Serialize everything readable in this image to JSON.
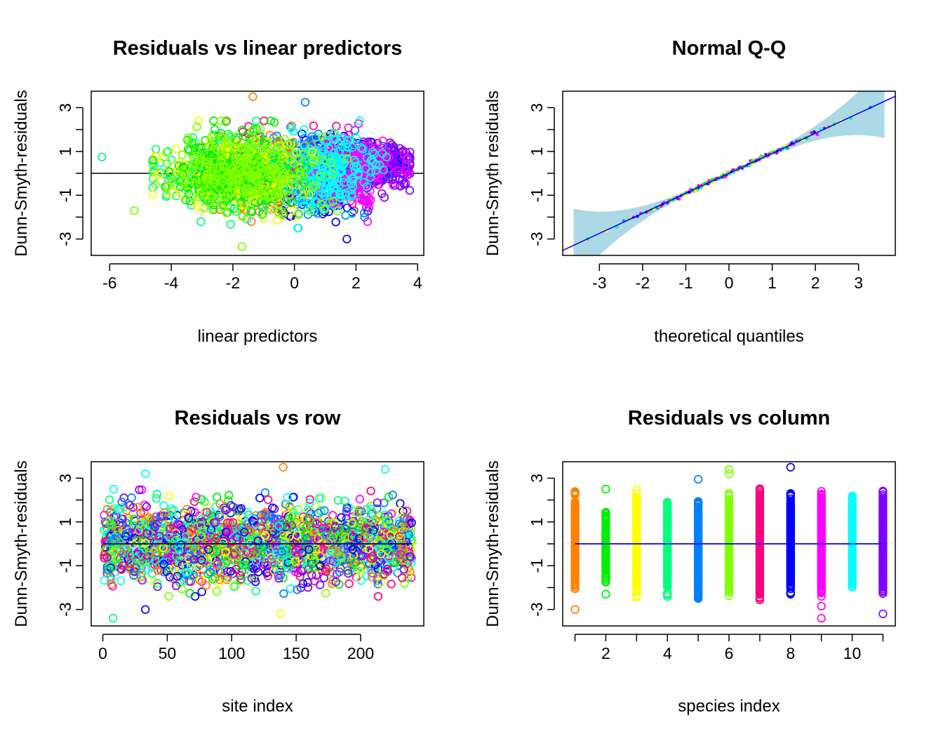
{
  "chart_data": [
    {
      "id": "p1",
      "type": "scatter",
      "title": "Residuals vs linear predictors",
      "xlabel": "linear predictors",
      "ylabel": "Dunn-Smyth-residuals",
      "xlim": [
        -6.6,
        4.2
      ],
      "ylim": [
        -3.75,
        3.75
      ],
      "xticks": [
        -6,
        -4,
        -2,
        0,
        2,
        4
      ],
      "yticks": [
        -3,
        -2,
        -1,
        0,
        1,
        2,
        3
      ],
      "ytick_labels": [
        "-3",
        "-1",
        "1",
        "3"
      ],
      "reference_line": {
        "x": [
          -6.6,
          4.2
        ],
        "y": [
          0,
          0
        ],
        "color": "#000000"
      },
      "marker": "open-circle",
      "points_shown": "approx. 2640 residuals colored by species",
      "notable_points": [
        {
          "x": -6.25,
          "y": 0.75
        },
        {
          "x": -5.2,
          "y": -1.7
        },
        {
          "x": -1.7,
          "y": -3.35
        },
        {
          "x": -1.35,
          "y": 3.5
        },
        {
          "x": 0.35,
          "y": 3.25
        },
        {
          "x": 1.7,
          "y": -3.0
        }
      ]
    },
    {
      "id": "p2",
      "type": "scatter",
      "title": "Normal Q-Q",
      "xlabel": "theoretical quantiles",
      "ylabel": "Dunn-Smyth residuals",
      "xlim": [
        -3.85,
        3.85
      ],
      "ylim": [
        -3.75,
        3.75
      ],
      "xticks": [
        -3,
        -2,
        -1,
        0,
        1,
        2,
        3
      ],
      "yticks": [
        -3,
        -2,
        -1,
        0,
        1,
        2,
        3
      ],
      "ytick_labels": [
        "-3",
        "-1",
        "1",
        "3"
      ],
      "reference_line": {
        "x": [
          -3.85,
          3.85
        ],
        "y": [
          -3.52,
          3.52
        ],
        "color": "#0000ff"
      },
      "envelope_color": "#add8e6",
      "marker": "small-filled-circle"
    },
    {
      "id": "p3",
      "type": "scatter",
      "title": "Residuals vs row",
      "xlabel": "site index",
      "ylabel": "Dunn-Smyth-residuals",
      "xlim": [
        -9,
        249
      ],
      "ylim": [
        -3.75,
        3.75
      ],
      "xticks": [
        0,
        50,
        100,
        150,
        200
      ],
      "yticks": [
        -3,
        -2,
        -1,
        0,
        1,
        2,
        3
      ],
      "ytick_labels": [
        "-3",
        "-1",
        "1",
        "3"
      ],
      "reference_line": {
        "x": [
          1,
          240
        ],
        "y": [
          0,
          0
        ],
        "color": "#000080"
      },
      "marker": "open-circle",
      "notable_points": [
        {
          "x": 33,
          "y": 3.2
        },
        {
          "x": 140,
          "y": 3.5
        },
        {
          "x": 219,
          "y": 3.4
        },
        {
          "x": 8,
          "y": -3.4
        },
        {
          "x": 33,
          "y": -3.0
        },
        {
          "x": 138,
          "y": -3.2
        }
      ]
    },
    {
      "id": "p4",
      "type": "scatter",
      "title": "Residuals vs column",
      "xlabel": "species index",
      "ylabel": "Dunn-Smyth-residuals",
      "xlim": [
        0.6,
        11.4
      ],
      "ylim": [
        -3.75,
        3.75
      ],
      "xticks": [
        1,
        2,
        3,
        4,
        5,
        6,
        7,
        8,
        9,
        10,
        11
      ],
      "xtick_labels": [
        "2",
        "4",
        "6",
        "8",
        "10"
      ],
      "yticks": [
        -3,
        -2,
        -1,
        0,
        1,
        2,
        3
      ],
      "ytick_labels": [
        "-3",
        "-1",
        "1",
        "3"
      ],
      "reference_line": {
        "x": [
          1,
          11
        ],
        "y": [
          0,
          0
        ],
        "color": "#0000ff"
      },
      "marker": "open-circle",
      "species": [
        {
          "x": 1,
          "color": "#ff8000",
          "min": -2.05,
          "max": 2.45,
          "outliers": [
            -3.0
          ]
        },
        {
          "x": 2,
          "color": "#00ee00",
          "min": -1.75,
          "max": 1.45,
          "outliers": [
            2.5,
            -2.3
          ]
        },
        {
          "x": 3,
          "color": "#ffff00",
          "min": -2.45,
          "max": 2.55,
          "outliers": []
        },
        {
          "x": 4,
          "color": "#00ff80",
          "min": -2.45,
          "max": 1.95,
          "outliers": []
        },
        {
          "x": 5,
          "color": "#0080ff",
          "min": -2.5,
          "max": 1.95,
          "outliers": [
            2.95
          ]
        },
        {
          "x": 6,
          "color": "#80ff00",
          "min": -2.45,
          "max": 2.35,
          "outliers": [
            3.2,
            3.4
          ]
        },
        {
          "x": 7,
          "color": "#ff0080",
          "min": -2.6,
          "max": 2.55,
          "outliers": []
        },
        {
          "x": 8,
          "color": "#0000ff",
          "min": -2.3,
          "max": 2.3,
          "outliers": [
            3.5
          ]
        },
        {
          "x": 9,
          "color": "#ff00ff",
          "min": -2.4,
          "max": 2.4,
          "outliers": [
            -2.85,
            -3.4
          ]
        },
        {
          "x": 10,
          "color": "#00ffff",
          "min": -2.05,
          "max": 2.35,
          "outliers": []
        },
        {
          "x": 11,
          "color": "#8000ff",
          "min": -2.35,
          "max": 2.45,
          "outliers": [
            -3.2
          ]
        }
      ]
    }
  ]
}
